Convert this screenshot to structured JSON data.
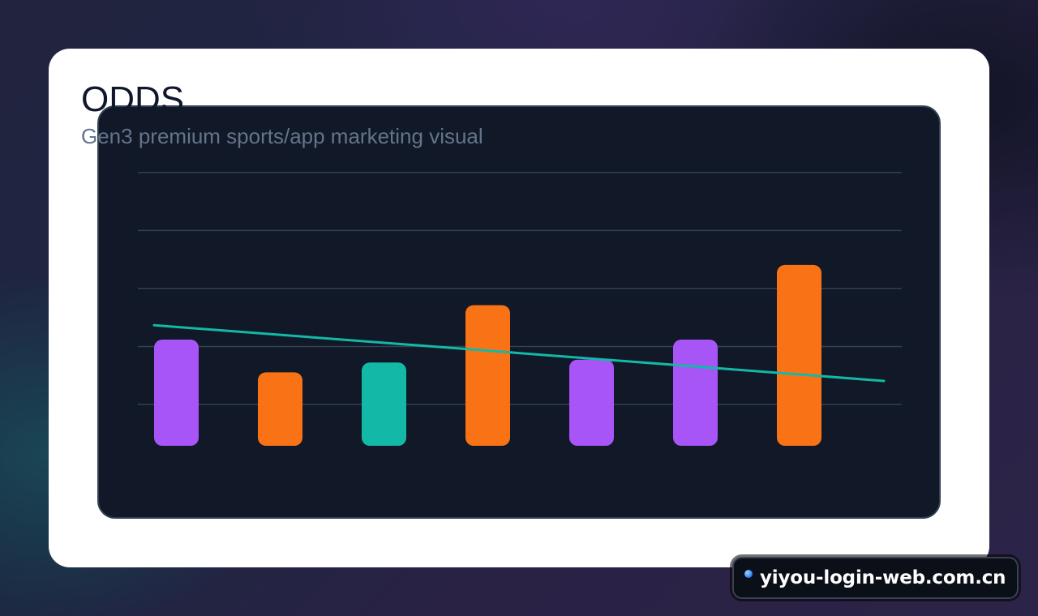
{
  "header": {
    "title": "ODDS",
    "subtitle": "Gen3 premium sports/app marketing visual"
  },
  "chart_data": {
    "type": "bar",
    "title": "ODDS",
    "subtitle": "Gen3 premium sports/app marketing visual",
    "categories": [
      "",
      "",
      "",
      "",
      "",
      "",
      ""
    ],
    "values": [
      1.85,
      1.28,
      1.45,
      2.45,
      1.5,
      1.85,
      3.15
    ],
    "bar_colors": [
      "#a855f7",
      "#f97316",
      "#14b8a6",
      "#f97316",
      "#a855f7",
      "#a855f7",
      "#f97316"
    ],
    "trend_line": {
      "start": 2.1,
      "end": 1.13,
      "color": "#14b8a6"
    },
    "ylim": [
      0,
      4.8
    ],
    "grid": true,
    "gridline_values": [
      0.72,
      1.73,
      2.74,
      3.75,
      4.76
    ],
    "xlabel": "",
    "ylabel": ""
  },
  "watermark": {
    "text": "yiyou-login-web.com.cn"
  },
  "colors": {
    "panel_bg": "#111827",
    "grid": "#334155",
    "card_bg": "#ffffff"
  }
}
